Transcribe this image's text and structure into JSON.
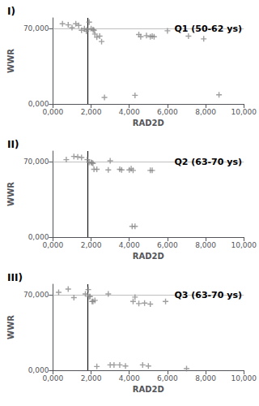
{
  "chart_data": [
    {
      "type": "scatter",
      "title": "Q1 (50-62 ys)",
      "annotations": [
        "I)"
      ],
      "xlabel": "RAD2D",
      "ylabel": "WWR",
      "x": [
        500,
        800,
        1000,
        1200,
        1350,
        1500,
        1650,
        1750,
        1800,
        1900,
        2000,
        2100,
        2150,
        2200,
        2300,
        2450,
        2550,
        2700,
        4300,
        4500,
        4600,
        4900,
        5100,
        5200,
        5300,
        6000,
        7100,
        7900,
        8700
      ],
      "values": [
        74500,
        73500,
        71000,
        74500,
        73000,
        68500,
        70000,
        67500,
        69000,
        76000,
        70000,
        69000,
        68500,
        65000,
        62000,
        63000,
        58000,
        6000,
        8000,
        64500,
        62500,
        63500,
        62500,
        63000,
        62500,
        68000,
        63000,
        60500,
        8500
      ],
      "color": "#888888",
      "marker": "plus",
      "reference_lines": [
        {
          "axis": "x",
          "value": 1800,
          "color": "#1a1a1a"
        },
        {
          "axis": "y",
          "value": 70000,
          "color": "#b0b0b0"
        }
      ],
      "xlim": [
        0,
        10000
      ],
      "xticks": [
        {
          "value": 0,
          "label": "0,000"
        },
        {
          "value": 2000,
          "label": "2,000"
        },
        {
          "value": 4000,
          "label": "4,000"
        },
        {
          "value": 6000,
          "label": "6,000"
        },
        {
          "value": 8000,
          "label": "8,000"
        },
        {
          "value": 10000,
          "label": "10,000"
        }
      ],
      "ylim": [
        0,
        80000
      ],
      "yticks": [
        {
          "value": 0,
          "label": "0,000"
        },
        {
          "value": 70000,
          "label": "70,000"
        }
      ],
      "grid": false
    },
    {
      "type": "scatter",
      "title": "Q2 (63-70 ys)",
      "annotations": [
        "II)"
      ],
      "xlabel": "RAD2D",
      "ylabel": "WWR",
      "x": [
        700,
        1100,
        1300,
        1500,
        1800,
        1900,
        2000,
        2050,
        2100,
        2150,
        2300,
        2900,
        3000,
        3500,
        3600,
        4000,
        4100,
        4150,
        4200,
        4300,
        5100,
        5200
      ],
      "values": [
        72000,
        75000,
        74500,
        74000,
        72000,
        69500,
        69500,
        69000,
        68500,
        63000,
        63000,
        62500,
        71000,
        63000,
        62500,
        62500,
        63500,
        10000,
        62000,
        10000,
        62000,
        62000
      ],
      "color": "#888888",
      "marker": "plus",
      "reference_lines": [
        {
          "axis": "x",
          "value": 1800,
          "color": "#1a1a1a"
        },
        {
          "axis": "y",
          "value": 70000,
          "color": "#b0b0b0"
        }
      ],
      "xlim": [
        0,
        10000
      ],
      "xticks": [
        {
          "value": 0,
          "label": "0,000"
        },
        {
          "value": 2000,
          "label": "2,000"
        },
        {
          "value": 4000,
          "label": "4,000"
        },
        {
          "value": 6000,
          "label": "6,000"
        },
        {
          "value": 8000,
          "label": "8,000"
        },
        {
          "value": 10000,
          "label": "10,000"
        }
      ],
      "ylim": [
        0,
        80000
      ],
      "yticks": [
        {
          "value": 0,
          "label": "0,000"
        },
        {
          "value": 70000,
          "label": "70,000"
        }
      ],
      "grid": false
    },
    {
      "type": "scatter",
      "title": "Q3 (63-70 ys)",
      "annotations": [
        "III)"
      ],
      "xlabel": "RAD2D",
      "ylabel": "WWR",
      "x": [
        300,
        800,
        1100,
        1700,
        1850,
        1900,
        1950,
        2050,
        2100,
        2200,
        2300,
        2900,
        3000,
        3200,
        3500,
        3800,
        4200,
        4300,
        4500,
        4700,
        4800,
        5000,
        5100,
        5900,
        7000
      ],
      "values": [
        72500,
        75500,
        67500,
        71000,
        75000,
        68500,
        68500,
        64000,
        64000,
        65000,
        3500,
        71000,
        5000,
        5000,
        5000,
        4000,
        64000,
        68000,
        62000,
        5000,
        62500,
        4000,
        61500,
        64000,
        1500
      ],
      "color": "#888888",
      "marker": "plus",
      "reference_lines": [
        {
          "axis": "x",
          "value": 1800,
          "color": "#1a1a1a"
        },
        {
          "axis": "y",
          "value": 70000,
          "color": "#b0b0b0"
        }
      ],
      "xlim": [
        0,
        10000
      ],
      "xticks": [
        {
          "value": 0,
          "label": "0,000"
        },
        {
          "value": 2000,
          "label": "2,000"
        },
        {
          "value": 4000,
          "label": "4,000"
        },
        {
          "value": 6000,
          "label": "6,000"
        },
        {
          "value": 8000,
          "label": "8,000"
        },
        {
          "value": 10000,
          "label": "10,000"
        }
      ],
      "ylim": [
        0,
        80000
      ],
      "yticks": [
        {
          "value": 0,
          "label": "0,000"
        },
        {
          "value": 70000,
          "label": "70,000"
        }
      ],
      "grid": false
    }
  ]
}
